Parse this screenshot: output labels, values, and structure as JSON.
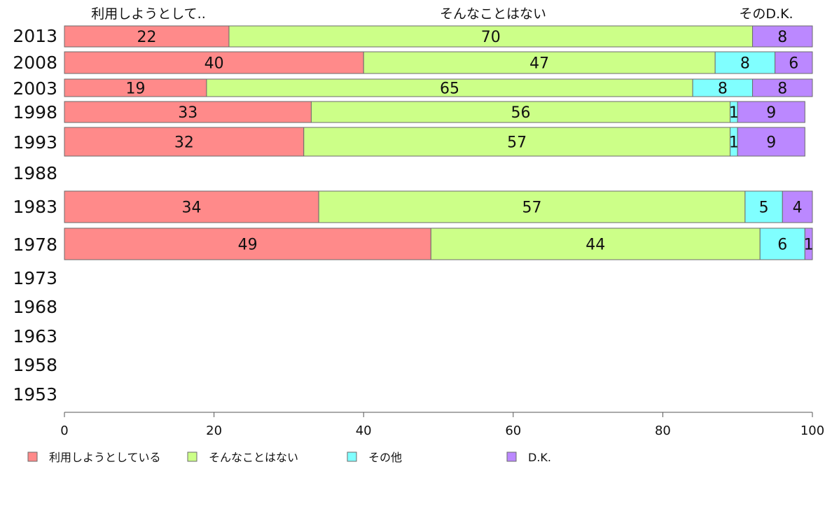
{
  "chart_data": {
    "type": "bar",
    "orientation": "horizontal",
    "stacked": true,
    "title": "",
    "column_headers": [
      "利用しようとして..",
      "そんなことはない",
      "そのD.K."
    ],
    "categories": [
      "2013",
      "2008",
      "2003",
      "1998",
      "1993",
      "1988",
      "1983",
      "1978",
      "1973",
      "1968",
      "1963",
      "1958",
      "1953"
    ],
    "series": [
      {
        "name": "利用しようとしている",
        "color": "#ff8a8a",
        "values": [
          22,
          40,
          19,
          33,
          32,
          null,
          34,
          49,
          null,
          null,
          null,
          null,
          null
        ]
      },
      {
        "name": "そんなことはない",
        "color": "#ccff88",
        "values": [
          70,
          47,
          65,
          56,
          57,
          null,
          57,
          44,
          null,
          null,
          null,
          null,
          null
        ]
      },
      {
        "name": "その他",
        "color": "#80ffff",
        "values": [
          null,
          8,
          8,
          1,
          1,
          null,
          5,
          6,
          null,
          null,
          null,
          null,
          null
        ]
      },
      {
        "name": "D.K.",
        "color": "#bb88ff",
        "values": [
          8,
          6,
          8,
          9,
          9,
          null,
          4,
          1,
          null,
          null,
          null,
          null,
          null
        ]
      }
    ],
    "xlim": [
      0,
      100
    ],
    "xticks": [
      "0",
      "20",
      "40",
      "60",
      "80",
      "100"
    ],
    "grid": false,
    "legend_position": "bottom"
  }
}
